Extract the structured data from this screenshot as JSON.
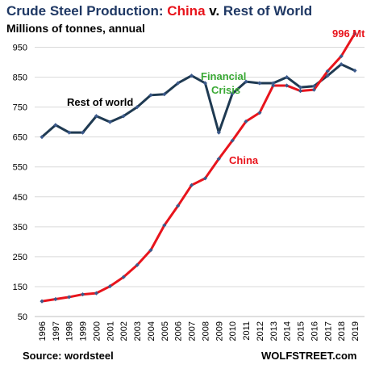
{
  "title": {
    "prefix": "Crude Steel Production: ",
    "china": "China",
    "middle": " v. ",
    "rest": "Rest of World"
  },
  "subtitle": "Millions of tonnes, annual",
  "source": "Source: wordsteel",
  "brand": "WOLFSTREET.com",
  "colors": {
    "china": "#e8141c",
    "rest_of_world": "#1f3a52",
    "title": "#1f3864",
    "crisis_label": "#3aa935",
    "gridline": "#d9d9d9",
    "marker": "#3c5a8c"
  },
  "annotations": {
    "rest_of_world": "Rest of world",
    "china": "China",
    "crisis_line1": "Financial",
    "crisis_line2": "Crisis",
    "end_value": "996 Mt"
  },
  "chart_data": {
    "type": "line",
    "title": "Crude Steel Production: China v. Rest of World",
    "subtitle": "Millions of tonnes, annual",
    "xlabel": "",
    "ylabel": "",
    "ylim": [
      50,
      1000
    ],
    "yticks": [
      50,
      150,
      250,
      350,
      450,
      550,
      650,
      750,
      850,
      950
    ],
    "grid": true,
    "legend": "none",
    "categories": [
      "1996",
      "1997",
      "1998",
      "1999",
      "2000",
      "2001",
      "2002",
      "2003",
      "2004",
      "2005",
      "2006",
      "2007",
      "2008",
      "2009",
      "2010",
      "2011",
      "2012",
      "2013",
      "2014",
      "2015",
      "2016",
      "2017",
      "2018",
      "2019"
    ],
    "series": [
      {
        "name": "Rest of world",
        "values": [
          650,
          690,
          665,
          665,
          720,
          700,
          720,
          750,
          790,
          793,
          830,
          855,
          830,
          665,
          795,
          835,
          830,
          830,
          850,
          816,
          820,
          855,
          893,
          872
        ]
      },
      {
        "name": "China",
        "values": [
          101,
          108,
          115,
          124,
          128,
          151,
          182,
          222,
          272,
          355,
          420,
          489,
          512,
          577,
          638,
          702,
          731,
          822,
          822,
          804,
          808,
          870,
          920,
          996
        ]
      }
    ]
  }
}
